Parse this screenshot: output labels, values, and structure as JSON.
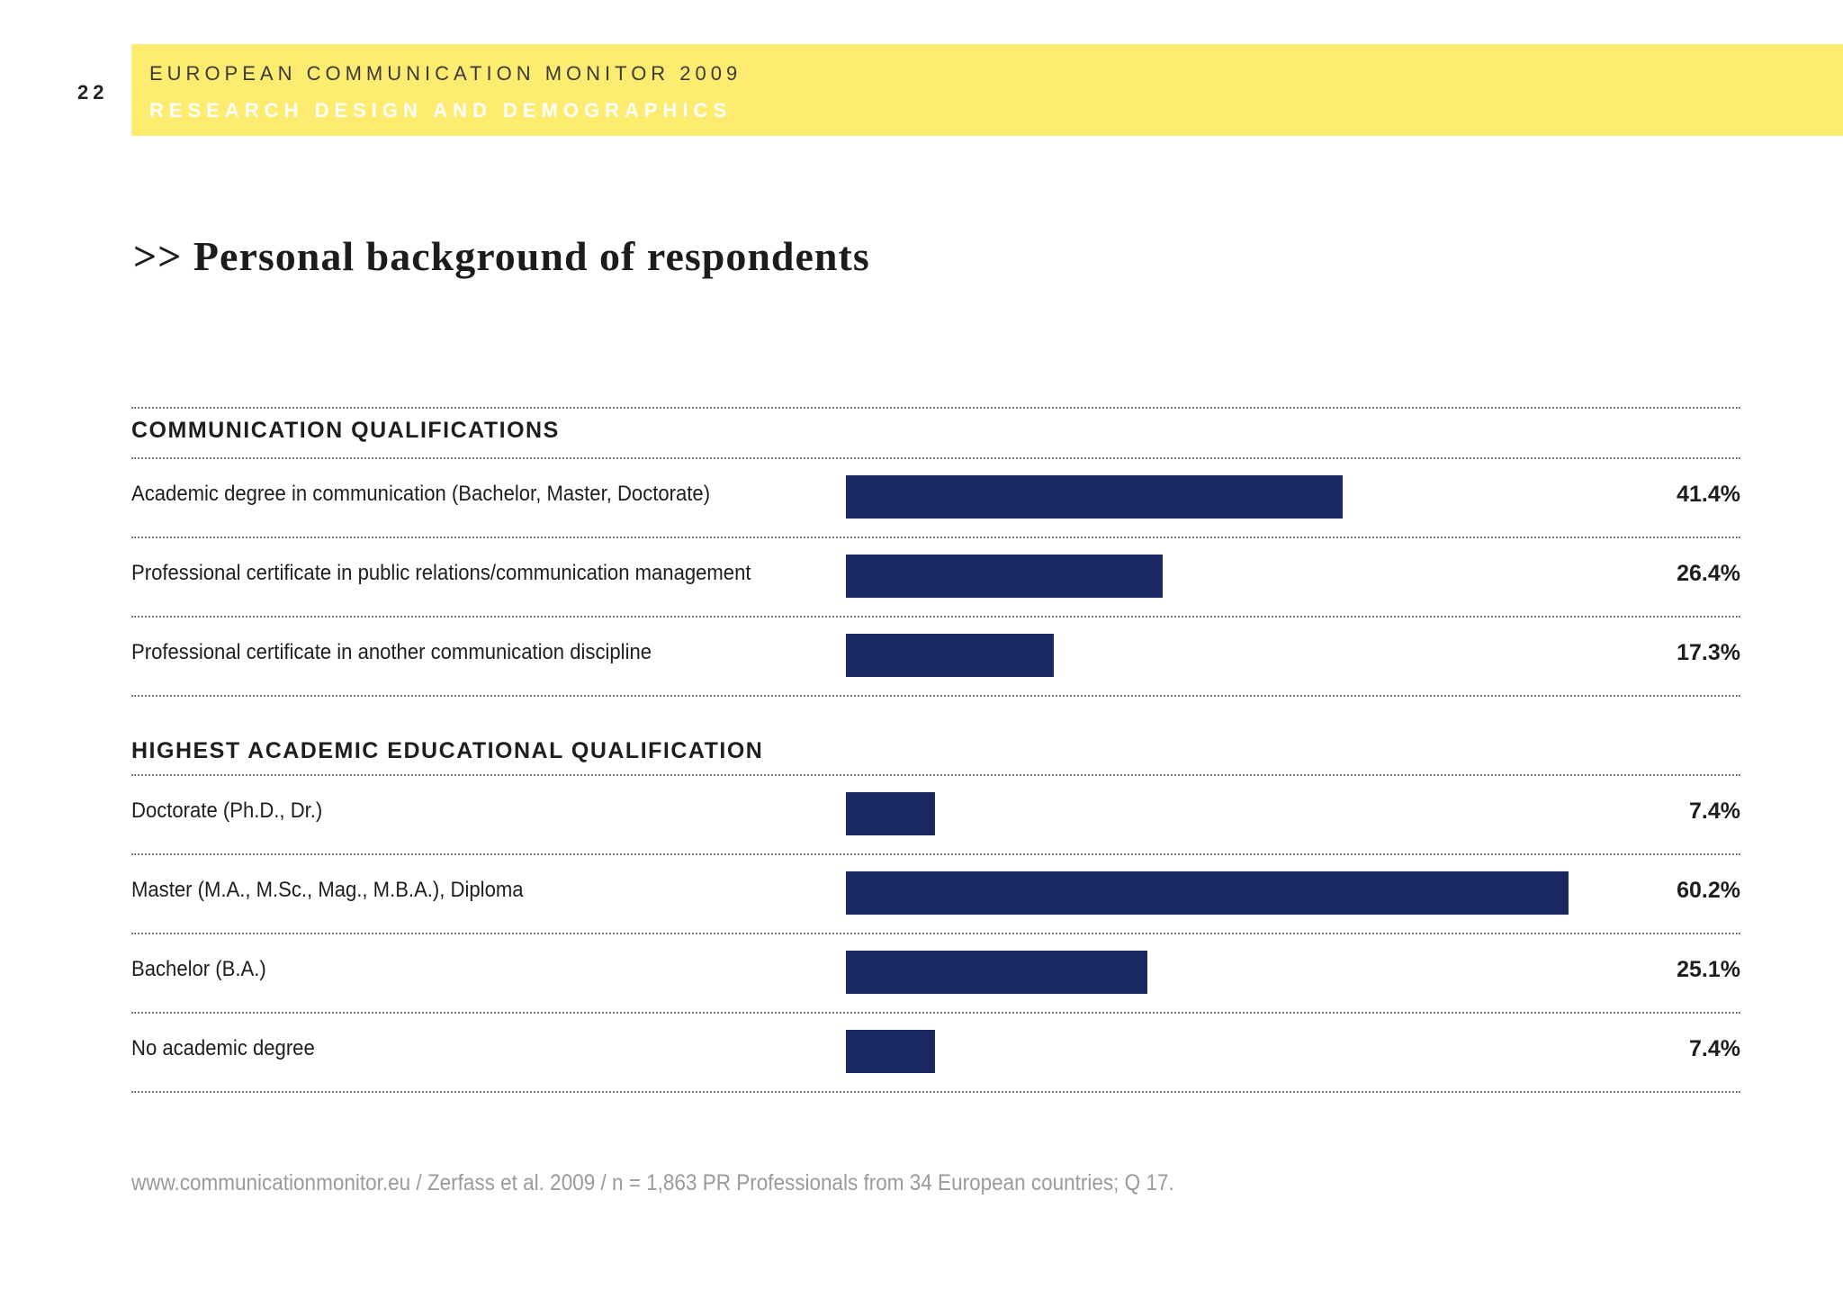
{
  "page_number": "22",
  "header": {
    "line1": "EUROPEAN COMMUNICATION MONITOR 2009",
    "line2": "RESEARCH DESIGN AND DEMOGRAPHICS"
  },
  "title": ">> Personal background of respondents",
  "footer": "www.communicationmonitor.eu / Zerfass et al. 2009 / n = 1,863 PR Professionals from 34 European countries; Q 17.",
  "colors": {
    "header_band": "#fdec6f",
    "bar": "#1a2862"
  },
  "chart_data": {
    "type": "bar",
    "orientation": "horizontal",
    "xlim": [
      0,
      70
    ],
    "groups": [
      {
        "heading": "COMMUNICATION QUALIFICATIONS",
        "rows": [
          {
            "label": "Academic degree in communication (Bachelor, Master, Doctorate)",
            "value": 41.4,
            "value_label": "41.4%"
          },
          {
            "label": "Professional certificate in public relations/communication management",
            "value": 26.4,
            "value_label": "26.4%"
          },
          {
            "label": "Professional certificate in another communication discipline",
            "value": 17.3,
            "value_label": "17.3%"
          }
        ]
      },
      {
        "heading": "HIGHEST ACADEMIC EDUCATIONAL QUALIFICATION",
        "rows": [
          {
            "label": "Doctorate (Ph.D., Dr.)",
            "value": 7.4,
            "value_label": "7.4%"
          },
          {
            "label": "Master (M.A., M.Sc., Mag., M.B.A.), Diploma",
            "value": 60.2,
            "value_label": "60.2%"
          },
          {
            "label": "Bachelor (B.A.)",
            "value": 25.1,
            "value_label": "25.1%"
          },
          {
            "label": "No academic degree",
            "value": 7.4,
            "value_label": "7.4%"
          }
        ]
      }
    ]
  }
}
